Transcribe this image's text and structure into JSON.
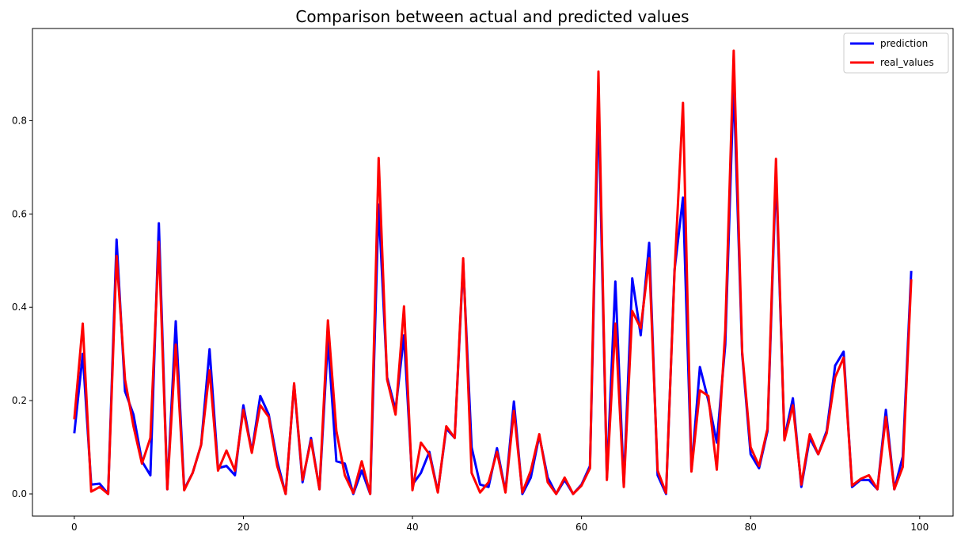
{
  "chart_data": {
    "type": "line",
    "title": "Comparison between actual and predicted values",
    "xlabel": "",
    "ylabel": "",
    "xlim": [
      -4.95,
      103.95
    ],
    "ylim": [
      -0.0475,
      0.9975
    ],
    "xticks": [
      0,
      20,
      40,
      60,
      80,
      100
    ],
    "yticks": [
      0.0,
      0.2,
      0.4,
      0.6,
      0.8
    ],
    "xtick_labels": [
      "0",
      "20",
      "40",
      "60",
      "80",
      "100"
    ],
    "ytick_labels": [
      "0.0",
      "0.2",
      "0.4",
      "0.6",
      "0.8"
    ],
    "grid": false,
    "legend_position": "top-right",
    "series": [
      {
        "name": "prediction",
        "color": "#0000ff",
        "values": [
          0.13,
          0.3,
          0.02,
          0.022,
          0.0,
          0.545,
          0.22,
          0.17,
          0.07,
          0.04,
          0.58,
          0.01,
          0.37,
          0.01,
          0.045,
          0.105,
          0.31,
          0.055,
          0.06,
          0.04,
          0.19,
          0.09,
          0.21,
          0.17,
          0.07,
          0.0,
          0.235,
          0.025,
          0.12,
          0.01,
          0.33,
          0.07,
          0.065,
          0.0,
          0.05,
          0.0,
          0.62,
          0.25,
          0.18,
          0.34,
          0.02,
          0.045,
          0.09,
          0.005,
          0.14,
          0.12,
          0.495,
          0.1,
          0.02,
          0.015,
          0.098,
          0.005,
          0.198,
          0.0,
          0.035,
          0.125,
          0.035,
          0.0,
          0.03,
          0.0,
          0.02,
          0.06,
          0.84,
          0.035,
          0.455,
          0.02,
          0.462,
          0.34,
          0.538,
          0.04,
          0.0,
          0.48,
          0.635,
          0.05,
          0.272,
          0.2,
          0.11,
          0.32,
          0.88,
          0.3,
          0.085,
          0.055,
          0.135,
          0.69,
          0.12,
          0.205,
          0.015,
          0.12,
          0.085,
          0.135,
          0.275,
          0.305,
          0.015,
          0.03,
          0.03,
          0.01,
          0.18,
          0.01,
          0.08,
          0.478
        ]
      },
      {
        "name": "real_values",
        "color": "#ff0000",
        "values": [
          0.16,
          0.365,
          0.005,
          0.015,
          0.0,
          0.51,
          0.245,
          0.145,
          0.065,
          0.12,
          0.54,
          0.01,
          0.32,
          0.008,
          0.045,
          0.105,
          0.265,
          0.05,
          0.093,
          0.05,
          0.18,
          0.088,
          0.19,
          0.165,
          0.06,
          0.0,
          0.237,
          0.03,
          0.115,
          0.01,
          0.372,
          0.135,
          0.04,
          0.002,
          0.07,
          0.0,
          0.72,
          0.245,
          0.17,
          0.402,
          0.008,
          0.11,
          0.085,
          0.003,
          0.145,
          0.12,
          0.505,
          0.045,
          0.003,
          0.025,
          0.09,
          0.003,
          0.178,
          0.003,
          0.05,
          0.128,
          0.025,
          0.0,
          0.035,
          0.0,
          0.018,
          0.055,
          0.905,
          0.03,
          0.365,
          0.015,
          0.392,
          0.355,
          0.505,
          0.05,
          0.002,
          0.475,
          0.838,
          0.048,
          0.222,
          0.21,
          0.052,
          0.35,
          0.95,
          0.305,
          0.1,
          0.06,
          0.14,
          0.718,
          0.115,
          0.19,
          0.02,
          0.128,
          0.085,
          0.13,
          0.25,
          0.292,
          0.018,
          0.032,
          0.04,
          0.01,
          0.165,
          0.01,
          0.058,
          0.46
        ]
      }
    ]
  }
}
